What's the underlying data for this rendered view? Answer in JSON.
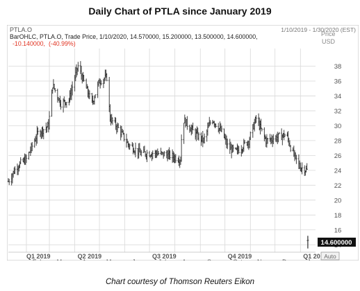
{
  "page": {
    "title": "Daily Chart of PTLA since January 2019",
    "caption": "Chart courtesy of Thomson Reuters Eikon"
  },
  "header": {
    "symbol_label": "PTLA.O",
    "date_range": "1/10/2019 - 1/30/2020 (EST)",
    "ohlc_line": "BarOHLC, PTLA.O, Trade Price, 1/10/2020, 14.570000, 15.200000, 13.500000, 14.600000,",
    "change_value": "-10.140000,",
    "change_pct": "(-40.99%)",
    "price_label": "Price",
    "currency_label": "USD",
    "last_price": "14.600000",
    "auto_label": "Auto"
  },
  "colors": {
    "bars": "#2b2b2b",
    "grid": "#d8d8d8",
    "change": "#e0301e",
    "price_tag_bg": "#111111",
    "price_tag_text": "#ffffff",
    "axis_text": "#555555"
  },
  "chart_data": {
    "type": "bar",
    "style": "ohlc",
    "y_axis_side": "right",
    "ylim": [
      13,
      40
    ],
    "yticks": [
      14,
      16,
      18,
      20,
      22,
      24,
      26,
      28,
      30,
      32,
      34,
      36,
      38
    ],
    "grid": true,
    "months": [
      "Feb",
      "Mar",
      "Apr",
      "May",
      "Jun",
      "Jul",
      "Aug",
      "Sep",
      "Oct",
      "Nov",
      "Dec",
      "Jan"
    ],
    "quarters": [
      "Q1 2019",
      "Q2 2019",
      "Q3 2019",
      "Q4 2019",
      "Q1 20"
    ],
    "series": [
      {
        "keyframes": [
          [
            "2019-01-10",
            22.5
          ],
          [
            "2019-01-20",
            24.5
          ],
          [
            "2019-02-01",
            25.5
          ],
          [
            "2019-02-15",
            29.0
          ],
          [
            "2019-02-28",
            30.0
          ],
          [
            "2019-03-05",
            35.5
          ],
          [
            "2019-03-15",
            33.0
          ],
          [
            "2019-03-25",
            33.5
          ],
          [
            "2019-04-01",
            36.5
          ],
          [
            "2019-04-05",
            38.0
          ],
          [
            "2019-04-15",
            35.0
          ],
          [
            "2019-04-22",
            33.0
          ],
          [
            "2019-05-01",
            36.0
          ],
          [
            "2019-05-10",
            36.5
          ],
          [
            "2019-05-14",
            31.0
          ],
          [
            "2019-05-25",
            29.5
          ],
          [
            "2019-06-05",
            27.5
          ],
          [
            "2019-06-20",
            26.3
          ],
          [
            "2019-07-10",
            26.3
          ],
          [
            "2019-07-25",
            26.0
          ],
          [
            "2019-08-08",
            25.5
          ],
          [
            "2019-08-10",
            31.0
          ],
          [
            "2019-08-25",
            29.0
          ],
          [
            "2019-09-05",
            28.0
          ],
          [
            "2019-09-15",
            31.0
          ],
          [
            "2019-09-28",
            29.0
          ],
          [
            "2019-10-05",
            27.0
          ],
          [
            "2019-10-15",
            26.5
          ],
          [
            "2019-10-30",
            28.0
          ],
          [
            "2019-11-08",
            31.0
          ],
          [
            "2019-11-20",
            28.0
          ],
          [
            "2019-12-05",
            28.5
          ],
          [
            "2019-12-15",
            28.8
          ],
          [
            "2019-12-22",
            26.5
          ],
          [
            "2019-12-31",
            24.5
          ],
          [
            "2020-01-09",
            24.0
          ]
        ],
        "last_bar": {
          "date": "2020-01-10",
          "open": 14.57,
          "high": 15.2,
          "low": 13.5,
          "close": 14.6
        }
      }
    ]
  }
}
